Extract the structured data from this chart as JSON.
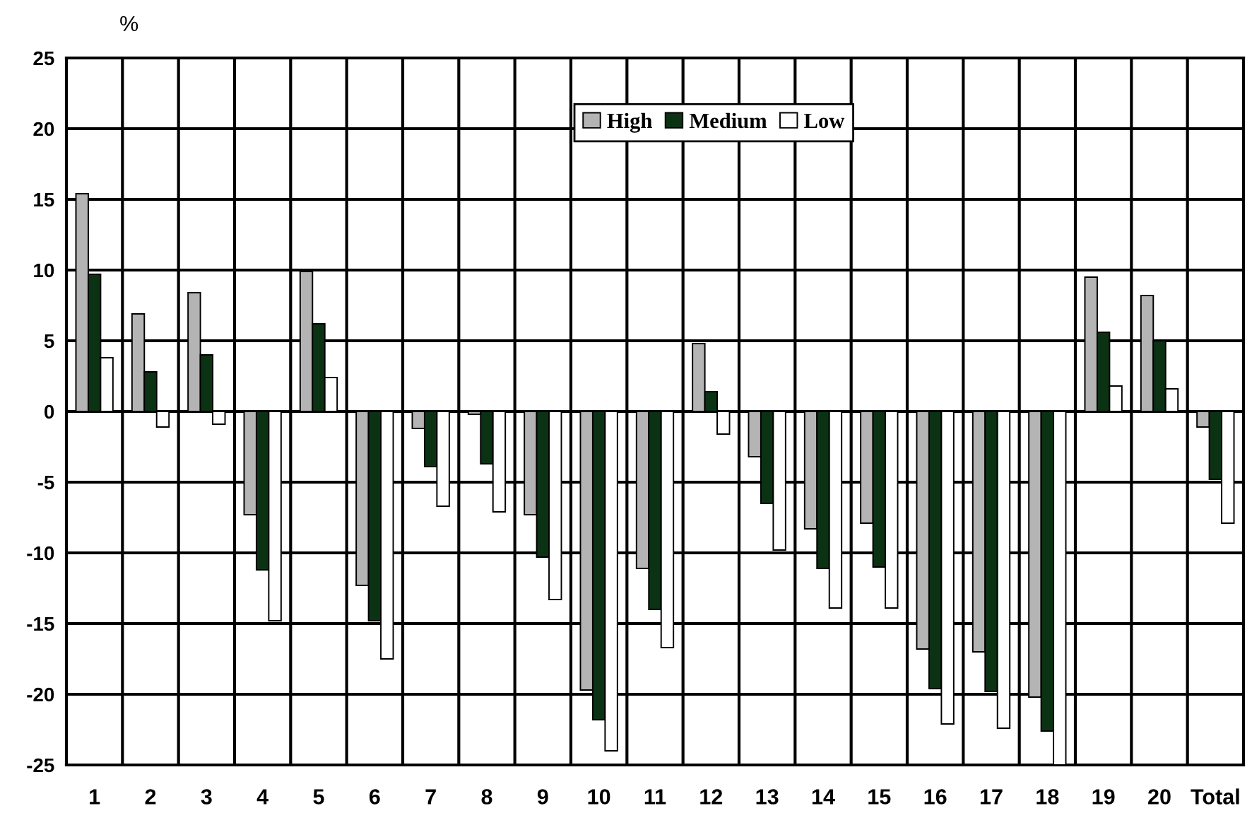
{
  "chart_data": {
    "type": "bar",
    "ylabel": "%",
    "categories": [
      "1",
      "2",
      "3",
      "4",
      "5",
      "6",
      "7",
      "8",
      "9",
      "10",
      "11",
      "12",
      "13",
      "14",
      "15",
      "16",
      "17",
      "18",
      "19",
      "20",
      "Total"
    ],
    "series": [
      {
        "name": "High",
        "color": "#b4b4b4",
        "values": [
          15.4,
          6.9,
          8.4,
          -7.3,
          9.9,
          -12.3,
          -1.2,
          -0.2,
          -7.3,
          -19.7,
          -11.1,
          4.8,
          -3.2,
          -8.3,
          -7.9,
          -16.8,
          -17.0,
          -20.2,
          9.5,
          8.2,
          -1.1
        ]
      },
      {
        "name": "Medium",
        "color": "#0c3214",
        "values": [
          9.7,
          2.8,
          4.0,
          -11.2,
          6.2,
          -14.8,
          -3.9,
          -3.7,
          -10.3,
          -21.8,
          -14.0,
          1.4,
          -6.5,
          -11.1,
          -11.0,
          -19.6,
          -19.8,
          -22.6,
          5.6,
          5.0,
          -4.8
        ]
      },
      {
        "name": "Low",
        "color": "#ffffff",
        "values": [
          3.8,
          -1.1,
          -0.9,
          -14.8,
          2.4,
          -17.5,
          -6.7,
          -7.1,
          -13.3,
          -24.0,
          -16.7,
          -1.6,
          -9.8,
          -13.9,
          -13.9,
          -22.1,
          -22.4,
          -25.0,
          1.8,
          1.6,
          -7.9
        ]
      }
    ],
    "ylim": [
      -25,
      25
    ],
    "yticks": [
      -25,
      -20,
      -15,
      -10,
      -5,
      0,
      5,
      10,
      15,
      20,
      25
    ],
    "grid": true,
    "legend": "top"
  }
}
